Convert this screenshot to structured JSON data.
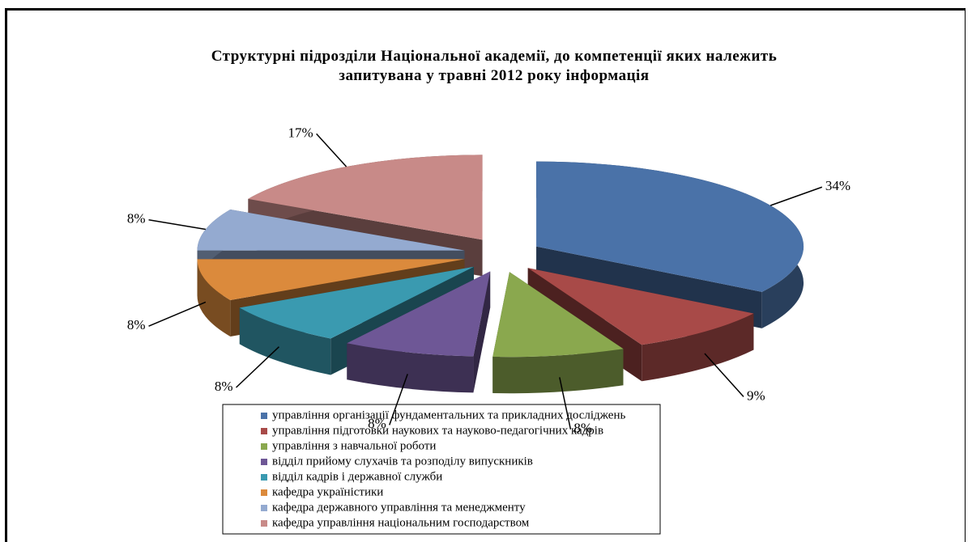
{
  "chart_data": {
    "type": "pie",
    "title": "Структурні підрозділи Національної академії, до компетенції яких належить запитувана у травні 2012 року інформація",
    "categories": [
      "управління організації фундаментальних та прикладних досліджень",
      "управління підготовки наукових та науково-педагогічних кадрів",
      "управління з навчальної роботи",
      "відділ прийому слухачів та розподілу випускників",
      "відділ кадрів і державної служби",
      "кафедра україністики",
      "кафедра державного управління та менеджменту",
      "кафедра управління національним господарством"
    ],
    "values": [
      34,
      9,
      8,
      8,
      8,
      8,
      8,
      17
    ],
    "value_labels": [
      "34%",
      "9%",
      "8%",
      "8%",
      "8%",
      "8%",
      "8%",
      "17%"
    ],
    "colors": [
      "#4a72a8",
      "#a84a48",
      "#8aa84e",
      "#6e5796",
      "#3a9ab0",
      "#db8a3c",
      "#94aad0",
      "#c88a88"
    ]
  }
}
